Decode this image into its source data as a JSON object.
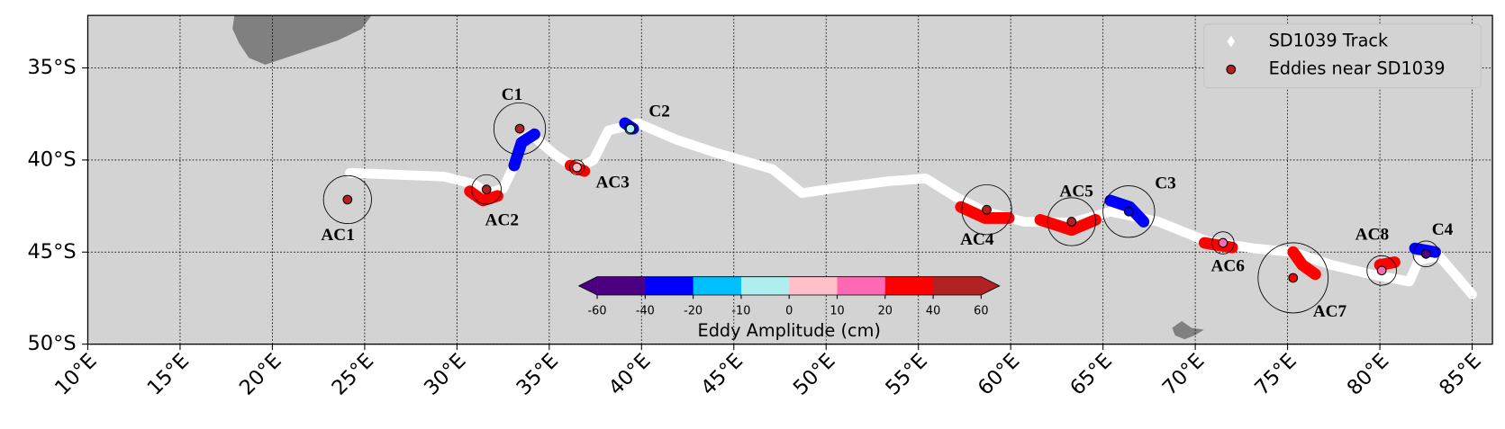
{
  "chart_data": {
    "type": "map",
    "xlim": [
      10,
      86.1
    ],
    "ylim": [
      -50,
      -32.15
    ],
    "xticks": [
      {
        "value": 10,
        "label": "10°E"
      },
      {
        "value": 15,
        "label": "15°E"
      },
      {
        "value": 20,
        "label": "20°E"
      },
      {
        "value": 25,
        "label": "25°E"
      },
      {
        "value": 30,
        "label": "30°E"
      },
      {
        "value": 35,
        "label": "35°E"
      },
      {
        "value": 40,
        "label": "40°E"
      },
      {
        "value": 45,
        "label": "45°E"
      },
      {
        "value": 50,
        "label": "50°E"
      },
      {
        "value": 55,
        "label": "55°E"
      },
      {
        "value": 60,
        "label": "60°E"
      },
      {
        "value": 65,
        "label": "65°E"
      },
      {
        "value": 70,
        "label": "70°E"
      },
      {
        "value": 75,
        "label": "75°E"
      },
      {
        "value": 80,
        "label": "80°E"
      },
      {
        "value": 85,
        "label": "85°E"
      }
    ],
    "yticks": [
      {
        "value": -35,
        "label": "35°S"
      },
      {
        "value": -40,
        "label": "40°S"
      },
      {
        "value": -45,
        "label": "45°S"
      },
      {
        "value": -50,
        "label": "50°S"
      }
    ],
    "grid": true,
    "legend": "upper right",
    "series": [
      {
        "name": "SD1039 Track",
        "color": "#ffffff",
        "x": [
          24.2,
          29.3,
          30.9,
          31.7,
          32.5,
          33.0,
          33.5,
          34.0,
          35.3,
          36.5,
          37.4,
          38.2,
          39.8,
          41.9,
          44.0,
          47.1,
          48.7,
          50.7,
          53.4,
          55.4,
          57.0,
          58.6,
          60.7,
          63.3,
          65.4,
          68.0,
          70.6,
          73.2,
          75.3,
          77.4,
          79.5,
          81.6,
          82.1,
          83.2,
          85.0
        ],
        "values": [
          -40.7,
          -40.9,
          -41.3,
          -41.8,
          -41.55,
          -40.5,
          -38.9,
          -38.6,
          -39.7,
          -40.5,
          -40.0,
          -38.4,
          -38.0,
          -38.9,
          -39.6,
          -40.5,
          -41.8,
          -41.5,
          -41.15,
          -41.0,
          -42.0,
          -42.8,
          -43.35,
          -43.4,
          -42.8,
          -43.35,
          -44.4,
          -44.8,
          -45.0,
          -45.7,
          -46.2,
          -46.6,
          -45.45,
          -45.2,
          -47.3
        ]
      },
      {
        "name": "Eddies near SD1039",
        "color": "#b22222",
        "labels": [
          "AC1",
          "AC2",
          "C1",
          "AC3",
          "C2",
          "AC4",
          "AC5",
          "C3",
          "AC6",
          "AC7",
          "AC8",
          "C4"
        ],
        "x": [
          24.07,
          31.6,
          33.4,
          36.5,
          39.4,
          58.7,
          63.3,
          66.4,
          71.5,
          75.3,
          80.1,
          82.5
        ],
        "values": [
          -42.15,
          -41.6,
          -38.3,
          -40.4,
          -38.3,
          -42.7,
          -43.35,
          -42.8,
          -44.5,
          -46.4,
          -46.0,
          -45.1
        ],
        "colors": [
          "#b22222",
          "#b22222",
          "#b22222",
          "#ffc0cb",
          "#afeeee",
          "#b22222",
          "#b22222",
          "#0000ff",
          "#ff69b4",
          "#ff0000",
          "#ff69b4",
          "#4b0082"
        ],
        "radius": [
          1.3,
          0.8,
          1.4,
          0.4,
          0.3,
          1.35,
          1.3,
          1.4,
          0.6,
          1.9,
          0.8,
          0.7
        ]
      }
    ],
    "track_segments": [
      {
        "color": "#ff0000",
        "x": [
          30.7,
          31.4,
          32.2
        ],
        "values": [
          -41.7,
          -42.2,
          -41.95
        ]
      },
      {
        "color": "#0000ff",
        "x": [
          33.1,
          33.5,
          34.2
        ],
        "values": [
          -40.3,
          -39.05,
          -38.6
        ]
      },
      {
        "color": "#ff0000",
        "x": [
          36.15,
          36.9
        ],
        "values": [
          -40.3,
          -40.6
        ]
      },
      {
        "color": "#0000ff",
        "x": [
          39.1,
          39.55
        ],
        "values": [
          -38.0,
          -38.3
        ]
      },
      {
        "color": "#ff0000",
        "x": [
          57.3,
          58.6,
          59.9
        ],
        "values": [
          -42.55,
          -43.15,
          -43.15
        ]
      },
      {
        "color": "#ff0000",
        "x": [
          61.6,
          63.3,
          64.6
        ],
        "values": [
          -43.25,
          -43.8,
          -43.25
        ]
      },
      {
        "color": "#0000ff",
        "x": [
          65.4,
          66.45,
          67.2
        ],
        "values": [
          -42.2,
          -42.55,
          -43.35
        ]
      },
      {
        "color": "#ff0000",
        "x": [
          70.5,
          72.0
        ],
        "values": [
          -44.5,
          -44.75
        ]
      },
      {
        "color": "#ff0000",
        "x": [
          75.3,
          75.8,
          76.5
        ],
        "values": [
          -45.0,
          -45.7,
          -46.2
        ]
      },
      {
        "color": "#ff0000",
        "x": [
          80.0,
          80.8
        ],
        "values": [
          -45.7,
          -45.55
        ]
      },
      {
        "color": "#0000ff",
        "x": [
          81.9,
          83.0
        ],
        "values": [
          -44.8,
          -45.0
        ]
      }
    ],
    "colorbar": {
      "label": "Eddy Amplitude (cm)",
      "ticks": [
        -60,
        -40,
        -20,
        -10,
        0,
        10,
        20,
        40,
        60
      ],
      "colors": [
        "#4b0082",
        "#0000ff",
        "#00bfff",
        "#afeeee",
        "#ffc0cb",
        "#ff69b4",
        "#ff0000",
        "#b22222"
      ]
    }
  }
}
